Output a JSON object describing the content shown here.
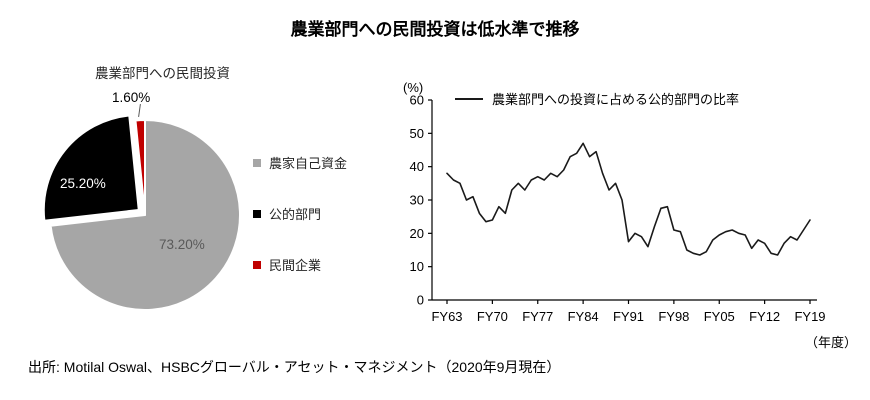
{
  "page": {
    "title": "農業部門への民間投資は低水準で推移",
    "source": "出所: Motilal Oswal、HSBCグローバル・アセット・マネジメント（2020年9月現在）"
  },
  "chart_data": [
    {
      "type": "pie",
      "title": "農業部門への民間投資",
      "labels": [
        "農家自己資金",
        "公的部門",
        "民間企業"
      ],
      "values": [
        73.2,
        25.2,
        1.6
      ],
      "value_labels": [
        "73.20%",
        "25.20%",
        "1.60%"
      ],
      "colors": [
        "#a6a6a6",
        "#000000",
        "#c00000"
      ],
      "explode": [
        0,
        8,
        0
      ],
      "legend_position": "right",
      "start_angle_deg": 0,
      "direction": "clockwise"
    },
    {
      "type": "line",
      "legend": "農業部門への投資に占める公的部門の比率",
      "ylabel": "(%)",
      "xlabel": "（年度）",
      "ylim": [
        0,
        60
      ],
      "yticks": [
        0,
        10,
        20,
        30,
        40,
        50,
        60
      ],
      "xtick_years": [
        1963,
        1970,
        1977,
        1984,
        1991,
        1998,
        2005,
        2012,
        2019
      ],
      "xticklabels": [
        "FY63",
        "FY70",
        "FY77",
        "FY84",
        "FY91",
        "FY98",
        "FY05",
        "FY12",
        "FY19"
      ],
      "x_start_year": 1963,
      "x_end_year": 2019,
      "line_color": "#1a1a1a",
      "grid": false,
      "values": [
        38,
        36,
        35,
        30,
        31,
        26,
        23.5,
        24,
        28,
        26,
        33,
        35,
        33,
        36,
        37,
        36,
        38,
        37,
        39,
        43,
        44,
        47,
        43,
        44.5,
        38,
        33,
        35,
        30,
        17.5,
        20,
        19,
        16,
        22,
        27.5,
        28,
        21,
        20.5,
        15,
        14,
        13.5,
        14.5,
        18,
        19.5,
        20.5,
        21,
        20,
        19.5,
        15.5,
        18,
        17,
        14,
        13.5,
        17,
        19,
        18,
        21,
        24
      ]
    }
  ]
}
